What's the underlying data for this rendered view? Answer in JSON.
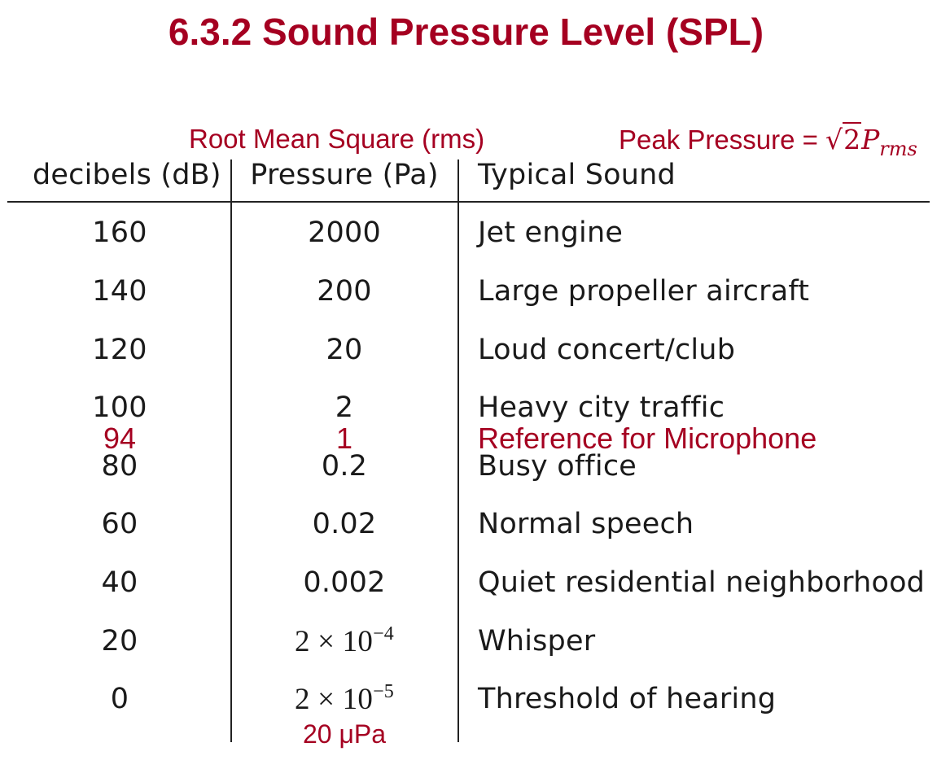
{
  "title": "6.3.2 Sound Pressure Level (SPL)",
  "annotations": {
    "rms": "Root Mean Square (rms)",
    "peak_prefix": "Peak Pressure = ",
    "peak_root": "2",
    "peak_var": "P",
    "peak_sub": "rms",
    "threshold_pressure": "20 μPa"
  },
  "colors": {
    "accent": "#a50021",
    "text": "#1a1a1a"
  },
  "table": {
    "headers": [
      "decibels (dB)",
      "Pressure (Pa)",
      "Typical Sound"
    ],
    "rows": [
      {
        "db": "160",
        "pressure": "2000",
        "sound": "Jet engine"
      },
      {
        "db": "140",
        "pressure": "200",
        "sound": "Large propeller aircraft"
      },
      {
        "db": "120",
        "pressure": "20",
        "sound": "Loud concert/club"
      },
      {
        "db": "100",
        "pressure": "2",
        "sound": "Heavy city traffic"
      },
      {
        "db": "94",
        "pressure": "1",
        "sound": "Reference for Microphone",
        "highlight": true
      },
      {
        "db": "80",
        "pressure": "0.2",
        "sound": "Busy office"
      },
      {
        "db": "60",
        "pressure": "0.02",
        "sound": "Normal speech"
      },
      {
        "db": "40",
        "pressure": "0.002",
        "sound": "Quiet residential neighborhood"
      },
      {
        "db": "20",
        "pressure_base": "2 × 10",
        "pressure_exp": "−4",
        "sound": "Whisper"
      },
      {
        "db": "0",
        "pressure_base": "2 × 10",
        "pressure_exp": "−5",
        "sound": "Threshold of hearing"
      }
    ]
  }
}
